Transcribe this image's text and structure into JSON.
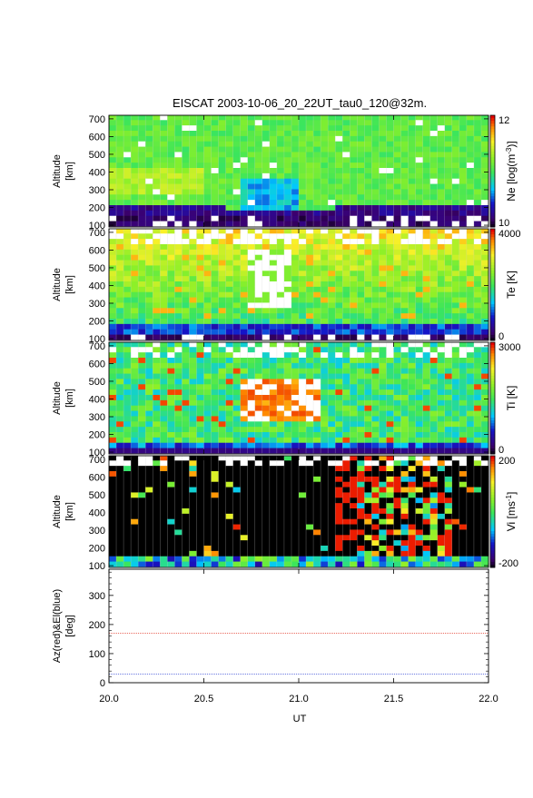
{
  "title": "EISCAT 2003-10-06_20_22UT_tau0_120@32m.",
  "x_axis": {
    "label": "UT",
    "range": [
      20.0,
      22.0
    ],
    "ticks": [
      "20.0",
      "20.5",
      "21.0",
      "21.5",
      "22.0"
    ]
  },
  "colors": {
    "red_line": "#e33a2a",
    "blue_line": "#3a4fd8",
    "grid": "#d0d0d0",
    "missing": "#ffffff"
  },
  "chart_data": [
    {
      "type": "heatmap",
      "quantity": "Ne",
      "ylabel_line1": "Altitude",
      "ylabel_line2": "[km]",
      "ylim": [
        90,
        720
      ],
      "yticks": [
        "100",
        "200",
        "300",
        "400",
        "500",
        "600",
        "700"
      ],
      "colorbar_label": "Ne [log(m",
      "colorbar_label_sup": "-3",
      "colorbar_label_end": ")]",
      "colorbar_range": [
        10,
        12
      ],
      "colorbar_ticks": [
        "12",
        "10"
      ]
    },
    {
      "type": "heatmap",
      "quantity": "Te",
      "ylabel_line1": "Altitude",
      "ylabel_line2": "[km]",
      "ylim": [
        90,
        720
      ],
      "yticks": [
        "100",
        "200",
        "300",
        "400",
        "500",
        "600",
        "700"
      ],
      "colorbar_label": "Te [K]",
      "colorbar_range": [
        0,
        4000
      ],
      "colorbar_ticks": [
        "4000",
        "0"
      ]
    },
    {
      "type": "heatmap",
      "quantity": "Ti",
      "ylabel_line1": "Altitude",
      "ylabel_line2": "[km]",
      "ylim": [
        90,
        720
      ],
      "yticks": [
        "100",
        "200",
        "300",
        "400",
        "500",
        "600",
        "700"
      ],
      "colorbar_label": "Ti [K]",
      "colorbar_range": [
        0,
        3000
      ],
      "colorbar_ticks": [
        "3000",
        "0"
      ]
    },
    {
      "type": "heatmap",
      "quantity": "Vi",
      "ylabel_line1": "Altitude",
      "ylabel_line2": "[km]",
      "ylim": [
        90,
        720
      ],
      "yticks": [
        "100",
        "200",
        "300",
        "400",
        "500",
        "600",
        "700"
      ],
      "colorbar_label": "Vi [ms",
      "colorbar_label_sup": "-1",
      "colorbar_label_end": "]",
      "colorbar_range": [
        -200,
        200
      ],
      "colorbar_ticks": [
        "200",
        "-200"
      ]
    },
    {
      "type": "line",
      "ylabel_line1": "Az(red)&El(blue)",
      "ylabel_line2": "[deg]",
      "ylim": [
        0,
        390
      ],
      "yticks": [
        "0",
        "100",
        "200",
        "300"
      ],
      "yticks_minor": [
        20,
        40,
        60,
        80,
        120,
        140,
        160,
        180,
        220,
        240,
        260,
        280,
        320,
        340,
        360,
        380
      ],
      "series": [
        {
          "name": "Az",
          "x": [
            20.0,
            22.0
          ],
          "y": [
            170,
            170
          ]
        },
        {
          "name": "El",
          "x": [
            20.0,
            22.0
          ],
          "y": [
            30,
            30
          ]
        }
      ]
    }
  ]
}
